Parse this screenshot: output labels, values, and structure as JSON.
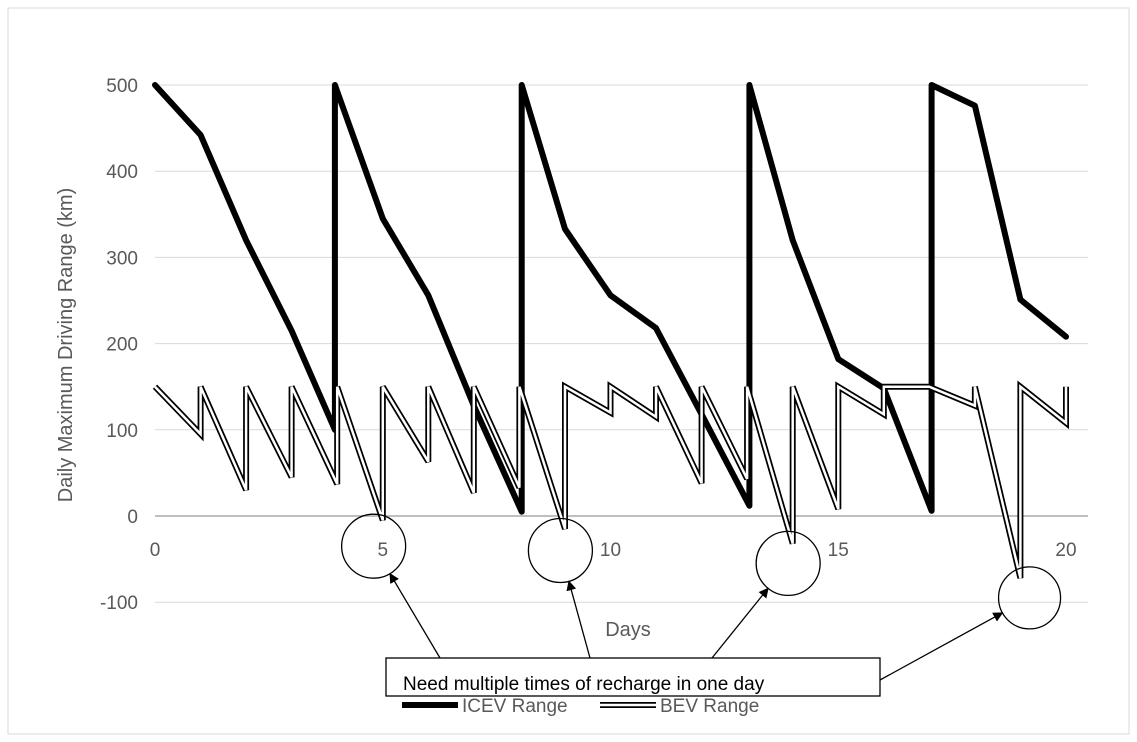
{
  "chart_data": {
    "type": "line",
    "title": "",
    "xlabel": "Days",
    "ylabel": "Daily Maximum Driving Range (km)",
    "xlim": [
      0,
      21
    ],
    "ylim": [
      -100,
      550
    ],
    "x_ticks": [
      0,
      5,
      10,
      15,
      20
    ],
    "x_tick_labels": [
      "0",
      "5",
      "10",
      "15",
      "20"
    ],
    "y_ticks": [
      -100,
      0,
      100,
      200,
      300,
      400,
      500
    ],
    "y_tick_labels": [
      "-100",
      "0",
      "100",
      "200",
      "300",
      "400",
      "500"
    ],
    "grid": "horizontal",
    "legend_position": "bottom",
    "series": [
      {
        "name": "ICEV Range",
        "style": "thick-solid",
        "color": "#000000",
        "points": [
          [
            0,
            500
          ],
          [
            1,
            442
          ],
          [
            2,
            320
          ],
          [
            3,
            215
          ],
          [
            3.95,
            100
          ],
          [
            3.95,
            500
          ],
          [
            5,
            345
          ],
          [
            6,
            256
          ],
          [
            7,
            128
          ],
          [
            8.05,
            5
          ],
          [
            8.05,
            500
          ],
          [
            9,
            333
          ],
          [
            10,
            256
          ],
          [
            11,
            218
          ],
          [
            12,
            118
          ],
          [
            13.05,
            12
          ],
          [
            13.05,
            500
          ],
          [
            14,
            320
          ],
          [
            15,
            182
          ],
          [
            16,
            148
          ],
          [
            17.05,
            6
          ],
          [
            17.05,
            500
          ],
          [
            18,
            476
          ],
          [
            19,
            251
          ],
          [
            20,
            208
          ]
        ]
      },
      {
        "name": "BEV Range",
        "style": "double-line",
        "color": "#000000",
        "points": [
          [
            0,
            150
          ],
          [
            1,
            95
          ],
          [
            1,
            150
          ],
          [
            2,
            30
          ],
          [
            2,
            150
          ],
          [
            3,
            45
          ],
          [
            3,
            150
          ],
          [
            4,
            37
          ],
          [
            4,
            150
          ],
          [
            5,
            -5
          ],
          [
            5,
            150
          ],
          [
            6,
            63
          ],
          [
            6,
            150
          ],
          [
            7,
            27
          ],
          [
            7,
            150
          ],
          [
            8,
            33
          ],
          [
            8,
            150
          ],
          [
            9,
            -15
          ],
          [
            9,
            150
          ],
          [
            10,
            120
          ],
          [
            10,
            150
          ],
          [
            11,
            115
          ],
          [
            11,
            150
          ],
          [
            12,
            38
          ],
          [
            12,
            150
          ],
          [
            13,
            43
          ],
          [
            13,
            150
          ],
          [
            14,
            -32
          ],
          [
            14,
            150
          ],
          [
            15,
            8
          ],
          [
            15,
            150
          ],
          [
            16,
            118
          ],
          [
            16,
            150
          ],
          [
            17,
            150
          ],
          [
            18,
            128
          ],
          [
            18,
            150
          ],
          [
            19,
            -72
          ],
          [
            19,
            150
          ],
          [
            20,
            108
          ],
          [
            20,
            150
          ]
        ]
      }
    ],
    "annotation": {
      "text": "Need multiple times of recharge in one day",
      "circles_at": [
        [
          4.8,
          -35
        ],
        [
          8.9,
          -40
        ],
        [
          13.9,
          -55
        ],
        [
          19.2,
          -95
        ]
      ]
    }
  }
}
